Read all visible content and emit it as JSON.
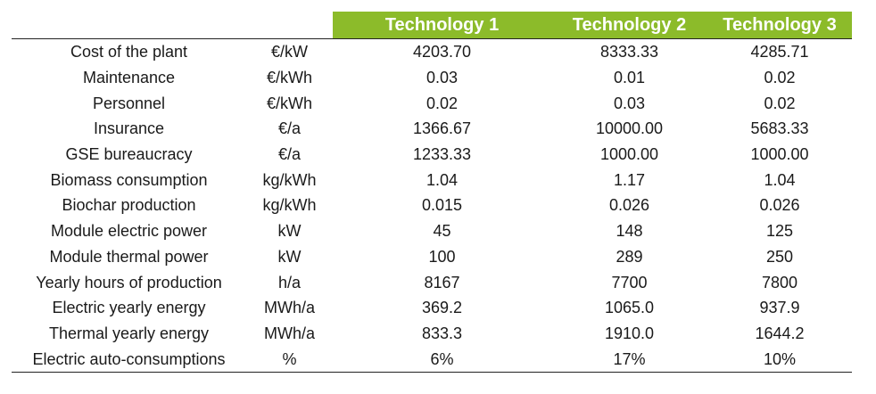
{
  "table": {
    "headers": [
      "Technology 1",
      "Technology 2",
      "Technology 3"
    ],
    "rows": [
      {
        "param": "Cost of the plant",
        "unit": "€/kW",
        "t1": "4203.70",
        "t2": "8333.33",
        "t3": "4285.71"
      },
      {
        "param": "Maintenance",
        "unit": "€/kWh",
        "t1": "0.03",
        "t2": "0.01",
        "t3": "0.02"
      },
      {
        "param": "Personnel",
        "unit": "€/kWh",
        "t1": "0.02",
        "t2": "0.03",
        "t3": "0.02"
      },
      {
        "param": "Insurance",
        "unit": "€/a",
        "t1": "1366.67",
        "t2": "10000.00",
        "t3": "5683.33"
      },
      {
        "param": "GSE bureaucracy",
        "unit": "€/a",
        "t1": "1233.33",
        "t2": "1000.00",
        "t3": "1000.00"
      },
      {
        "param": "Biomass consumption",
        "unit": "kg/kWh",
        "t1": "1.04",
        "t2": "1.17",
        "t3": "1.04"
      },
      {
        "param": "Biochar production",
        "unit": "kg/kWh",
        "t1": "0.015",
        "t2": "0.026",
        "t3": "0.026"
      },
      {
        "param": "Module electric power",
        "unit": "kW",
        "t1": "45",
        "t2": "148",
        "t3": "125"
      },
      {
        "param": "Module thermal power",
        "unit": "kW",
        "t1": "100",
        "t2": "289",
        "t3": "250"
      },
      {
        "param": "Yearly hours of production",
        "unit": "h/a",
        "t1": "8167",
        "t2": "7700",
        "t3": "7800"
      },
      {
        "param": "Electric yearly energy",
        "unit": "MWh/a",
        "t1": "369.2",
        "t2": "1065.0",
        "t3": "937.9"
      },
      {
        "param": "Thermal yearly energy",
        "unit": "MWh/a",
        "t1": "833.3",
        "t2": "1910.0",
        "t3": "1644.2"
      },
      {
        "param": "Electric auto-consumptions",
        "unit": "%",
        "t1": "6%",
        "t2": "17%",
        "t3": "10%"
      }
    ]
  },
  "colors": {
    "header_bg": "#8cbb2a",
    "header_text": "#ffffff",
    "rule": "#222222"
  }
}
